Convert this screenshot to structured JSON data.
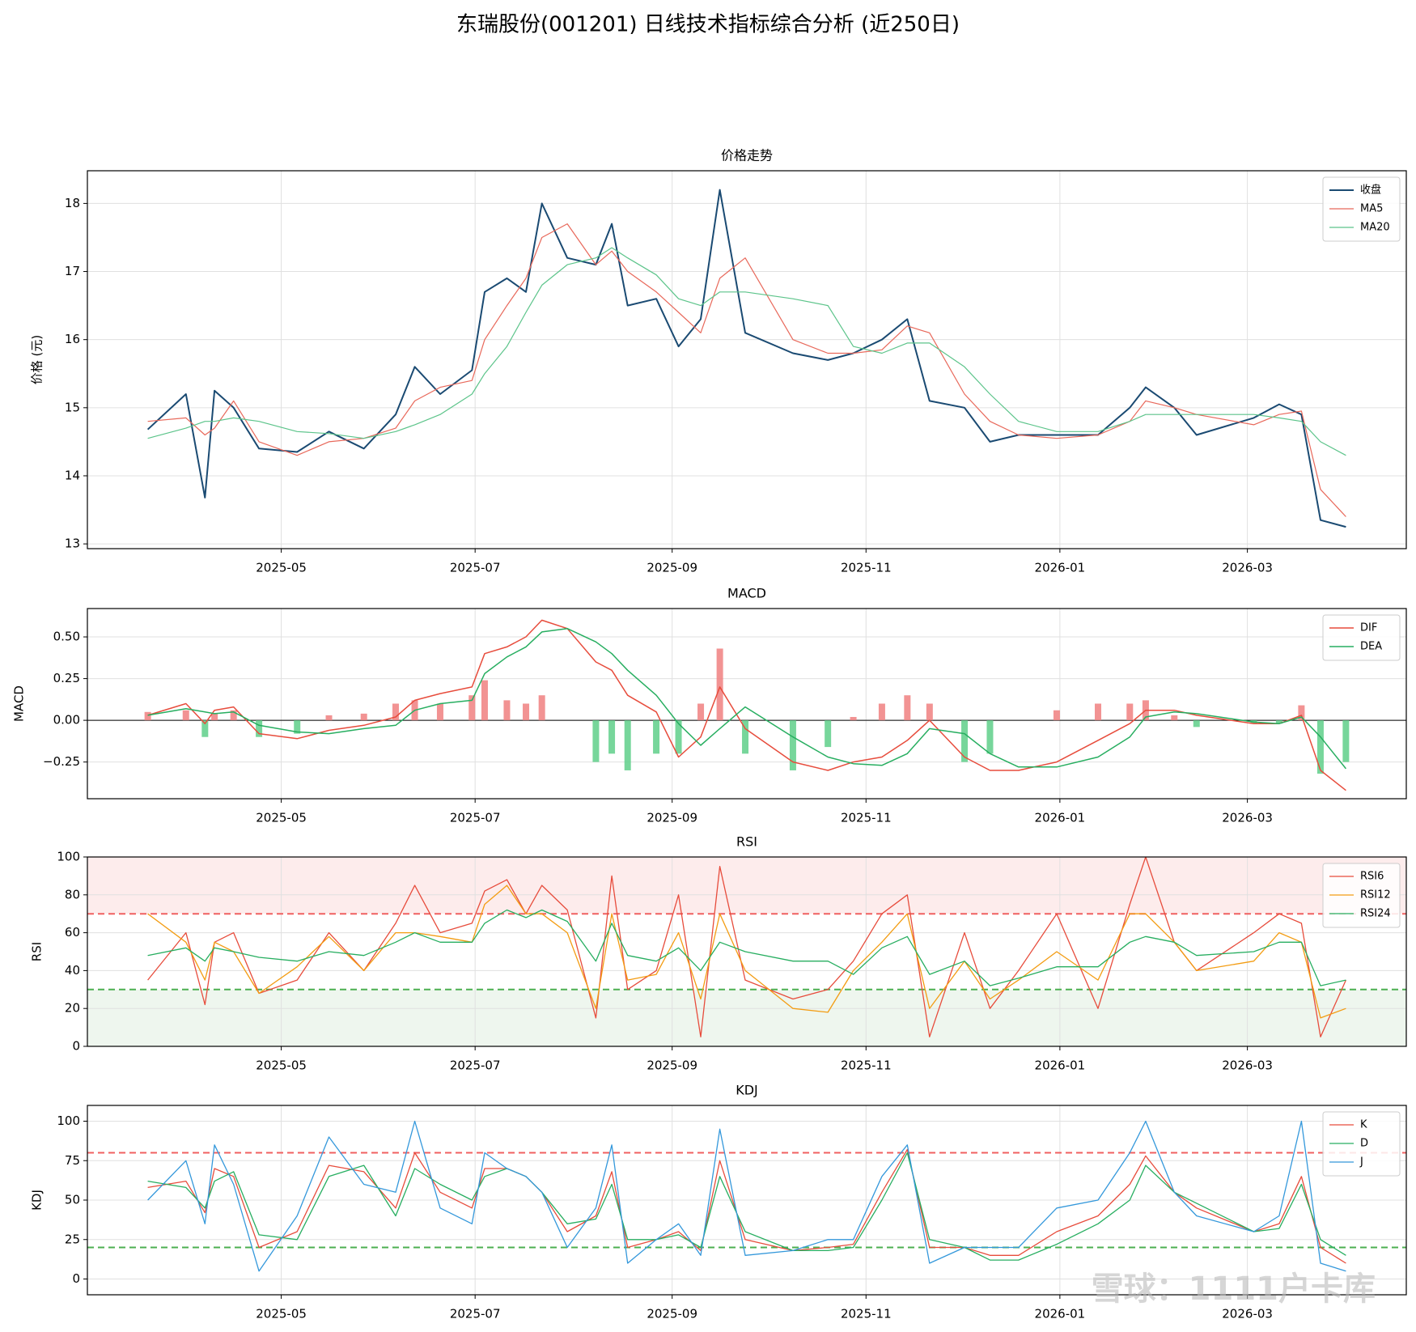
{
  "title": "东瑞股份(001201) 日线技术指标综合分析 (近250日)",
  "watermark": "雪球：1111户卡库",
  "chart_data": [
    {
      "type": "line",
      "title": "价格走势",
      "ylabel": "价格 (元)",
      "grid": true,
      "legend": "upper right",
      "x": [
        "2025-03-20",
        "2025-04-01",
        "2025-04-07",
        "2025-04-10",
        "2025-04-16",
        "2025-04-24",
        "2025-05-06",
        "2025-05-16",
        "2025-05-27",
        "2025-06-06",
        "2025-06-12",
        "2025-06-20",
        "2025-06-30",
        "2025-07-04",
        "2025-07-11",
        "2025-07-17",
        "2025-07-22",
        "2025-07-30",
        "2025-08-08",
        "2025-08-13",
        "2025-08-18",
        "2025-08-27",
        "2025-09-03",
        "2025-09-10",
        "2025-09-16",
        "2025-09-24",
        "2025-10-09",
        "2025-10-20",
        "2025-10-28",
        "2025-11-06",
        "2025-11-14",
        "2025-11-21",
        "2025-12-02",
        "2025-12-10",
        "2025-12-19",
        "2025-12-31",
        "2026-01-13",
        "2026-01-23",
        "2026-01-28",
        "2026-02-06",
        "2026-02-13",
        "2026-03-03",
        "2026-03-11",
        "2026-03-18",
        "2026-03-24",
        "2026-04-01"
      ],
      "xlim": [
        "2025-03-01",
        "2026-04-20"
      ],
      "xticks": [
        {
          "value": "2025-05-01",
          "label": "2025-05"
        },
        {
          "value": "2025-07-01",
          "label": "2025-07"
        },
        {
          "value": "2025-09-01",
          "label": "2025-09"
        },
        {
          "value": "2025-11-01",
          "label": "2025-11"
        },
        {
          "value": "2026-01-01",
          "label": "2026-01"
        },
        {
          "value": "2026-03-01",
          "label": "2026-03"
        }
      ],
      "ylim": [
        12.93,
        18.48
      ],
      "yticks": [
        13,
        14,
        15,
        16,
        17,
        18
      ],
      "series": [
        {
          "name": "收盘",
          "color": "#1a4a72",
          "width": 2,
          "values": [
            14.68,
            15.2,
            13.68,
            15.25,
            15.0,
            14.4,
            14.35,
            14.65,
            14.4,
            14.9,
            15.6,
            15.2,
            15.55,
            16.7,
            16.9,
            16.7,
            18.0,
            17.2,
            17.1,
            17.7,
            16.5,
            16.6,
            15.9,
            16.3,
            18.2,
            16.1,
            15.8,
            15.7,
            15.8,
            16.0,
            16.3,
            15.1,
            15.0,
            14.5,
            14.6,
            14.6,
            14.6,
            15.0,
            15.3,
            15.0,
            14.6,
            14.85,
            15.05,
            14.9,
            13.35,
            13.25
          ]
        },
        {
          "name": "MA5",
          "color": "#e8685a",
          "width": 1.2,
          "values": [
            14.8,
            14.85,
            14.6,
            14.7,
            15.1,
            14.5,
            14.3,
            14.5,
            14.55,
            14.7,
            15.1,
            15.3,
            15.4,
            16.0,
            16.5,
            16.9,
            17.5,
            17.7,
            17.1,
            17.3,
            17.0,
            16.7,
            16.4,
            16.1,
            16.9,
            17.2,
            16.0,
            15.8,
            15.8,
            15.85,
            16.2,
            16.1,
            15.2,
            14.8,
            14.6,
            14.55,
            14.6,
            14.8,
            15.1,
            15.0,
            14.9,
            14.75,
            14.9,
            14.95,
            13.8,
            13.4
          ]
        },
        {
          "name": "MA20",
          "color": "#5cc48a",
          "width": 1.2,
          "values": [
            14.55,
            14.7,
            14.8,
            14.8,
            14.85,
            14.8,
            14.65,
            14.62,
            14.55,
            14.65,
            14.75,
            14.9,
            15.2,
            15.5,
            15.9,
            16.4,
            16.8,
            17.1,
            17.2,
            17.35,
            17.2,
            16.95,
            16.6,
            16.5,
            16.7,
            16.7,
            16.6,
            16.5,
            15.9,
            15.8,
            15.95,
            15.95,
            15.6,
            15.2,
            14.8,
            14.65,
            14.65,
            14.8,
            14.9,
            14.9,
            14.9,
            14.9,
            14.85,
            14.8,
            14.5,
            14.3
          ]
        }
      ]
    },
    {
      "type": "macd",
      "title": "MACD",
      "ylabel": "MACD",
      "grid": true,
      "legend": "upper right",
      "ylim": [
        -0.47,
        0.67
      ],
      "yticks": [
        {
          "value": -0.25,
          "label": "−0.25"
        },
        {
          "value": 0,
          "label": "0.00"
        },
        {
          "value": 0.25,
          "label": "0.25"
        },
        {
          "value": 0.5,
          "label": "0.50"
        }
      ],
      "hlines": [
        {
          "value": 0,
          "color": "#000000",
          "dashed": false
        }
      ],
      "histogram": {
        "up_color": "#f08080",
        "down_color": "#5fcf8a",
        "values": [
          0.05,
          0.06,
          -0.1,
          0.04,
          0.06,
          -0.1,
          -0.08,
          0.03,
          0.04,
          0.1,
          0.12,
          0.1,
          0.15,
          0.24,
          0.12,
          0.1,
          0.15,
          0.0,
          -0.25,
          -0.2,
          -0.3,
          -0.2,
          -0.2,
          0.1,
          0.43,
          -0.2,
          -0.3,
          -0.16,
          0.02,
          0.1,
          0.15,
          0.1,
          -0.25,
          -0.2,
          0.0,
          0.06,
          0.1,
          0.1,
          0.12,
          0.03,
          -0.04,
          -0.02,
          -0.02,
          0.09,
          -0.32,
          -0.25
        ]
      },
      "series": [
        {
          "name": "DIF",
          "color": "#e74c3c",
          "width": 1.5,
          "values": [
            0.03,
            0.1,
            -0.02,
            0.06,
            0.08,
            -0.08,
            -0.11,
            -0.06,
            -0.03,
            0.02,
            0.12,
            0.16,
            0.2,
            0.4,
            0.44,
            0.5,
            0.6,
            0.55,
            0.35,
            0.3,
            0.15,
            0.05,
            -0.22,
            -0.1,
            0.2,
            -0.05,
            -0.25,
            -0.3,
            -0.25,
            -0.22,
            -0.12,
            0.0,
            -0.22,
            -0.3,
            -0.3,
            -0.25,
            -0.12,
            -0.02,
            0.06,
            0.06,
            0.03,
            -0.02,
            -0.02,
            0.03,
            -0.3,
            -0.42
          ]
        },
        {
          "name": "DEA",
          "color": "#27ae60",
          "width": 1.5,
          "values": [
            0.03,
            0.07,
            0.05,
            0.04,
            0.05,
            -0.03,
            -0.07,
            -0.08,
            -0.05,
            -0.03,
            0.06,
            0.1,
            0.12,
            0.28,
            0.38,
            0.44,
            0.53,
            0.55,
            0.47,
            0.4,
            0.3,
            0.15,
            -0.02,
            -0.15,
            -0.05,
            0.08,
            -0.1,
            -0.22,
            -0.26,
            -0.27,
            -0.2,
            -0.05,
            -0.08,
            -0.2,
            -0.28,
            -0.28,
            -0.22,
            -0.1,
            0.02,
            0.05,
            0.04,
            -0.01,
            -0.02,
            0.02,
            -0.1,
            -0.29
          ]
        }
      ]
    },
    {
      "type": "line",
      "title": "RSI",
      "ylabel": "RSI",
      "grid": true,
      "legend": "upper right",
      "ylim": [
        0,
        100
      ],
      "yticks": [
        0,
        20,
        40,
        60,
        80,
        100
      ],
      "bands": [
        {
          "from": 70,
          "to": 100,
          "color": "#fdecec"
        },
        {
          "from": 0,
          "to": 30,
          "color": "#eef6ee"
        }
      ],
      "hlines": [
        {
          "value": 70,
          "color": "#f06060",
          "dashed": true
        },
        {
          "value": 30,
          "color": "#4caf50",
          "dashed": true
        }
      ],
      "series": [
        {
          "name": "RSI6",
          "color": "#e74c3c",
          "width": 1.3,
          "values": [
            35,
            60,
            22,
            55,
            60,
            28,
            35,
            60,
            40,
            65,
            85,
            60,
            65,
            82,
            88,
            70,
            85,
            72,
            15,
            90,
            30,
            40,
            80,
            5,
            95,
            35,
            25,
            30,
            45,
            70,
            80,
            5,
            60,
            20,
            40,
            70,
            20,
            75,
            100,
            55,
            40,
            60,
            70,
            65,
            5,
            35
          ]
        },
        {
          "name": "RSI12",
          "color": "#f39c12",
          "width": 1.3,
          "values": [
            70,
            55,
            35,
            55,
            50,
            28,
            42,
            58,
            40,
            60,
            60,
            58,
            55,
            75,
            85,
            70,
            70,
            60,
            20,
            70,
            35,
            38,
            60,
            25,
            70,
            40,
            20,
            18,
            40,
            55,
            70,
            20,
            45,
            25,
            35,
            50,
            35,
            70,
            70,
            55,
            40,
            45,
            60,
            55,
            15,
            20
          ]
        },
        {
          "name": "RSI24",
          "color": "#27ae60",
          "width": 1.3,
          "values": [
            48,
            52,
            45,
            52,
            50,
            47,
            45,
            50,
            48,
            55,
            60,
            55,
            55,
            65,
            72,
            68,
            72,
            66,
            45,
            65,
            48,
            45,
            52,
            40,
            55,
            50,
            45,
            45,
            38,
            52,
            58,
            38,
            45,
            32,
            36,
            42,
            42,
            55,
            58,
            55,
            48,
            50,
            55,
            55,
            32,
            35
          ]
        }
      ]
    },
    {
      "type": "line",
      "title": "KDJ",
      "ylabel": "KDJ",
      "grid": true,
      "legend": "upper right",
      "ylim": [
        -10,
        110
      ],
      "yticks": [
        0,
        25,
        50,
        75,
        100
      ],
      "hlines": [
        {
          "value": 80,
          "color": "#f06060",
          "dashed": true
        },
        {
          "value": 20,
          "color": "#4caf50",
          "dashed": true
        }
      ],
      "series": [
        {
          "name": "K",
          "color": "#e74c3c",
          "width": 1.3,
          "values": [
            58,
            62,
            42,
            70,
            65,
            20,
            30,
            72,
            68,
            45,
            80,
            55,
            45,
            70,
            70,
            65,
            55,
            30,
            40,
            68,
            20,
            25,
            30,
            18,
            75,
            25,
            18,
            20,
            22,
            55,
            82,
            20,
            20,
            15,
            15,
            30,
            40,
            60,
            78,
            55,
            45,
            30,
            35,
            65,
            20,
            10
          ]
        },
        {
          "name": "D",
          "color": "#27ae60",
          "width": 1.3,
          "values": [
            62,
            58,
            45,
            62,
            68,
            28,
            25,
            65,
            72,
            40,
            70,
            60,
            50,
            65,
            70,
            65,
            55,
            35,
            38,
            60,
            25,
            25,
            28,
            20,
            65,
            30,
            18,
            18,
            20,
            50,
            80,
            25,
            20,
            12,
            12,
            22,
            35,
            50,
            72,
            55,
            48,
            30,
            32,
            60,
            25,
            15
          ]
        },
        {
          "name": "J",
          "color": "#3498db",
          "width": 1.3,
          "values": [
            50,
            75,
            35,
            85,
            60,
            5,
            40,
            90,
            60,
            55,
            100,
            45,
            35,
            80,
            70,
            65,
            55,
            20,
            45,
            85,
            10,
            25,
            35,
            15,
            95,
            15,
            18,
            25,
            25,
            65,
            85,
            10,
            20,
            20,
            20,
            45,
            50,
            80,
            100,
            55,
            40,
            30,
            40,
            100,
            10,
            5
          ]
        }
      ]
    }
  ]
}
